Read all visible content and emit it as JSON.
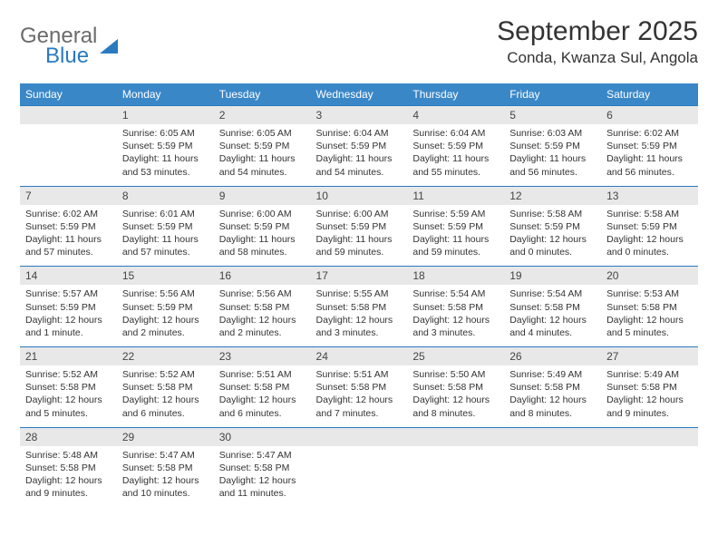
{
  "logo": {
    "text1": "General",
    "text2": "Blue"
  },
  "title": "September 2025",
  "location": "Conda, Kwanza Sul, Angola",
  "colors": {
    "header_bg": "#3a87c8",
    "header_text": "#ffffff",
    "daynum_bg": "#e8e8e8",
    "row_divider": "#2a7ac0",
    "body_text": "#333333",
    "logo_gray": "#6b6b6b",
    "logo_blue": "#2a7ac0"
  },
  "weekdays": [
    "Sunday",
    "Monday",
    "Tuesday",
    "Wednesday",
    "Thursday",
    "Friday",
    "Saturday"
  ],
  "weeks": [
    {
      "nums": [
        "",
        "1",
        "2",
        "3",
        "4",
        "5",
        "6"
      ],
      "cells": [
        null,
        {
          "sr": "Sunrise: 6:05 AM",
          "ss": "Sunset: 5:59 PM",
          "dl": "Daylight: 11 hours and 53 minutes."
        },
        {
          "sr": "Sunrise: 6:05 AM",
          "ss": "Sunset: 5:59 PM",
          "dl": "Daylight: 11 hours and 54 minutes."
        },
        {
          "sr": "Sunrise: 6:04 AM",
          "ss": "Sunset: 5:59 PM",
          "dl": "Daylight: 11 hours and 54 minutes."
        },
        {
          "sr": "Sunrise: 6:04 AM",
          "ss": "Sunset: 5:59 PM",
          "dl": "Daylight: 11 hours and 55 minutes."
        },
        {
          "sr": "Sunrise: 6:03 AM",
          "ss": "Sunset: 5:59 PM",
          "dl": "Daylight: 11 hours and 56 minutes."
        },
        {
          "sr": "Sunrise: 6:02 AM",
          "ss": "Sunset: 5:59 PM",
          "dl": "Daylight: 11 hours and 56 minutes."
        }
      ]
    },
    {
      "nums": [
        "7",
        "8",
        "9",
        "10",
        "11",
        "12",
        "13"
      ],
      "cells": [
        {
          "sr": "Sunrise: 6:02 AM",
          "ss": "Sunset: 5:59 PM",
          "dl": "Daylight: 11 hours and 57 minutes."
        },
        {
          "sr": "Sunrise: 6:01 AM",
          "ss": "Sunset: 5:59 PM",
          "dl": "Daylight: 11 hours and 57 minutes."
        },
        {
          "sr": "Sunrise: 6:00 AM",
          "ss": "Sunset: 5:59 PM",
          "dl": "Daylight: 11 hours and 58 minutes."
        },
        {
          "sr": "Sunrise: 6:00 AM",
          "ss": "Sunset: 5:59 PM",
          "dl": "Daylight: 11 hours and 59 minutes."
        },
        {
          "sr": "Sunrise: 5:59 AM",
          "ss": "Sunset: 5:59 PM",
          "dl": "Daylight: 11 hours and 59 minutes."
        },
        {
          "sr": "Sunrise: 5:58 AM",
          "ss": "Sunset: 5:59 PM",
          "dl": "Daylight: 12 hours and 0 minutes."
        },
        {
          "sr": "Sunrise: 5:58 AM",
          "ss": "Sunset: 5:59 PM",
          "dl": "Daylight: 12 hours and 0 minutes."
        }
      ]
    },
    {
      "nums": [
        "14",
        "15",
        "16",
        "17",
        "18",
        "19",
        "20"
      ],
      "cells": [
        {
          "sr": "Sunrise: 5:57 AM",
          "ss": "Sunset: 5:59 PM",
          "dl": "Daylight: 12 hours and 1 minute."
        },
        {
          "sr": "Sunrise: 5:56 AM",
          "ss": "Sunset: 5:59 PM",
          "dl": "Daylight: 12 hours and 2 minutes."
        },
        {
          "sr": "Sunrise: 5:56 AM",
          "ss": "Sunset: 5:58 PM",
          "dl": "Daylight: 12 hours and 2 minutes."
        },
        {
          "sr": "Sunrise: 5:55 AM",
          "ss": "Sunset: 5:58 PM",
          "dl": "Daylight: 12 hours and 3 minutes."
        },
        {
          "sr": "Sunrise: 5:54 AM",
          "ss": "Sunset: 5:58 PM",
          "dl": "Daylight: 12 hours and 3 minutes."
        },
        {
          "sr": "Sunrise: 5:54 AM",
          "ss": "Sunset: 5:58 PM",
          "dl": "Daylight: 12 hours and 4 minutes."
        },
        {
          "sr": "Sunrise: 5:53 AM",
          "ss": "Sunset: 5:58 PM",
          "dl": "Daylight: 12 hours and 5 minutes."
        }
      ]
    },
    {
      "nums": [
        "21",
        "22",
        "23",
        "24",
        "25",
        "26",
        "27"
      ],
      "cells": [
        {
          "sr": "Sunrise: 5:52 AM",
          "ss": "Sunset: 5:58 PM",
          "dl": "Daylight: 12 hours and 5 minutes."
        },
        {
          "sr": "Sunrise: 5:52 AM",
          "ss": "Sunset: 5:58 PM",
          "dl": "Daylight: 12 hours and 6 minutes."
        },
        {
          "sr": "Sunrise: 5:51 AM",
          "ss": "Sunset: 5:58 PM",
          "dl": "Daylight: 12 hours and 6 minutes."
        },
        {
          "sr": "Sunrise: 5:51 AM",
          "ss": "Sunset: 5:58 PM",
          "dl": "Daylight: 12 hours and 7 minutes."
        },
        {
          "sr": "Sunrise: 5:50 AM",
          "ss": "Sunset: 5:58 PM",
          "dl": "Daylight: 12 hours and 8 minutes."
        },
        {
          "sr": "Sunrise: 5:49 AM",
          "ss": "Sunset: 5:58 PM",
          "dl": "Daylight: 12 hours and 8 minutes."
        },
        {
          "sr": "Sunrise: 5:49 AM",
          "ss": "Sunset: 5:58 PM",
          "dl": "Daylight: 12 hours and 9 minutes."
        }
      ]
    },
    {
      "nums": [
        "28",
        "29",
        "30",
        "",
        "",
        "",
        ""
      ],
      "cells": [
        {
          "sr": "Sunrise: 5:48 AM",
          "ss": "Sunset: 5:58 PM",
          "dl": "Daylight: 12 hours and 9 minutes."
        },
        {
          "sr": "Sunrise: 5:47 AM",
          "ss": "Sunset: 5:58 PM",
          "dl": "Daylight: 12 hours and 10 minutes."
        },
        {
          "sr": "Sunrise: 5:47 AM",
          "ss": "Sunset: 5:58 PM",
          "dl": "Daylight: 12 hours and 11 minutes."
        },
        null,
        null,
        null,
        null
      ]
    }
  ]
}
